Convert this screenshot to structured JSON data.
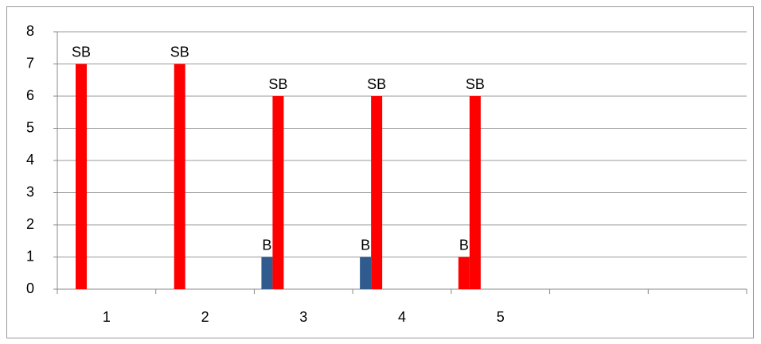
{
  "chart_data": {
    "type": "bar",
    "categories": [
      "1",
      "2",
      "3",
      "4",
      "5",
      null,
      null
    ],
    "series": [
      {
        "name": "B",
        "color": "#2f5b8f",
        "colors": [
          "#2f5b8f",
          "#2f5b8f",
          "#2f5b8f",
          "#2f5b8f",
          "#ff0000",
          "#2f5b8f",
          "#2f5b8f"
        ],
        "values": [
          null,
          null,
          1,
          1,
          1,
          null,
          null
        ]
      },
      {
        "name": "SB",
        "color": "#ff0000",
        "values": [
          7,
          7,
          6,
          6,
          6,
          null,
          null
        ]
      }
    ],
    "ylim": [
      0,
      8
    ],
    "yticks": [
      0,
      1,
      2,
      3,
      4,
      5,
      6,
      7,
      8
    ],
    "grid": true
  }
}
